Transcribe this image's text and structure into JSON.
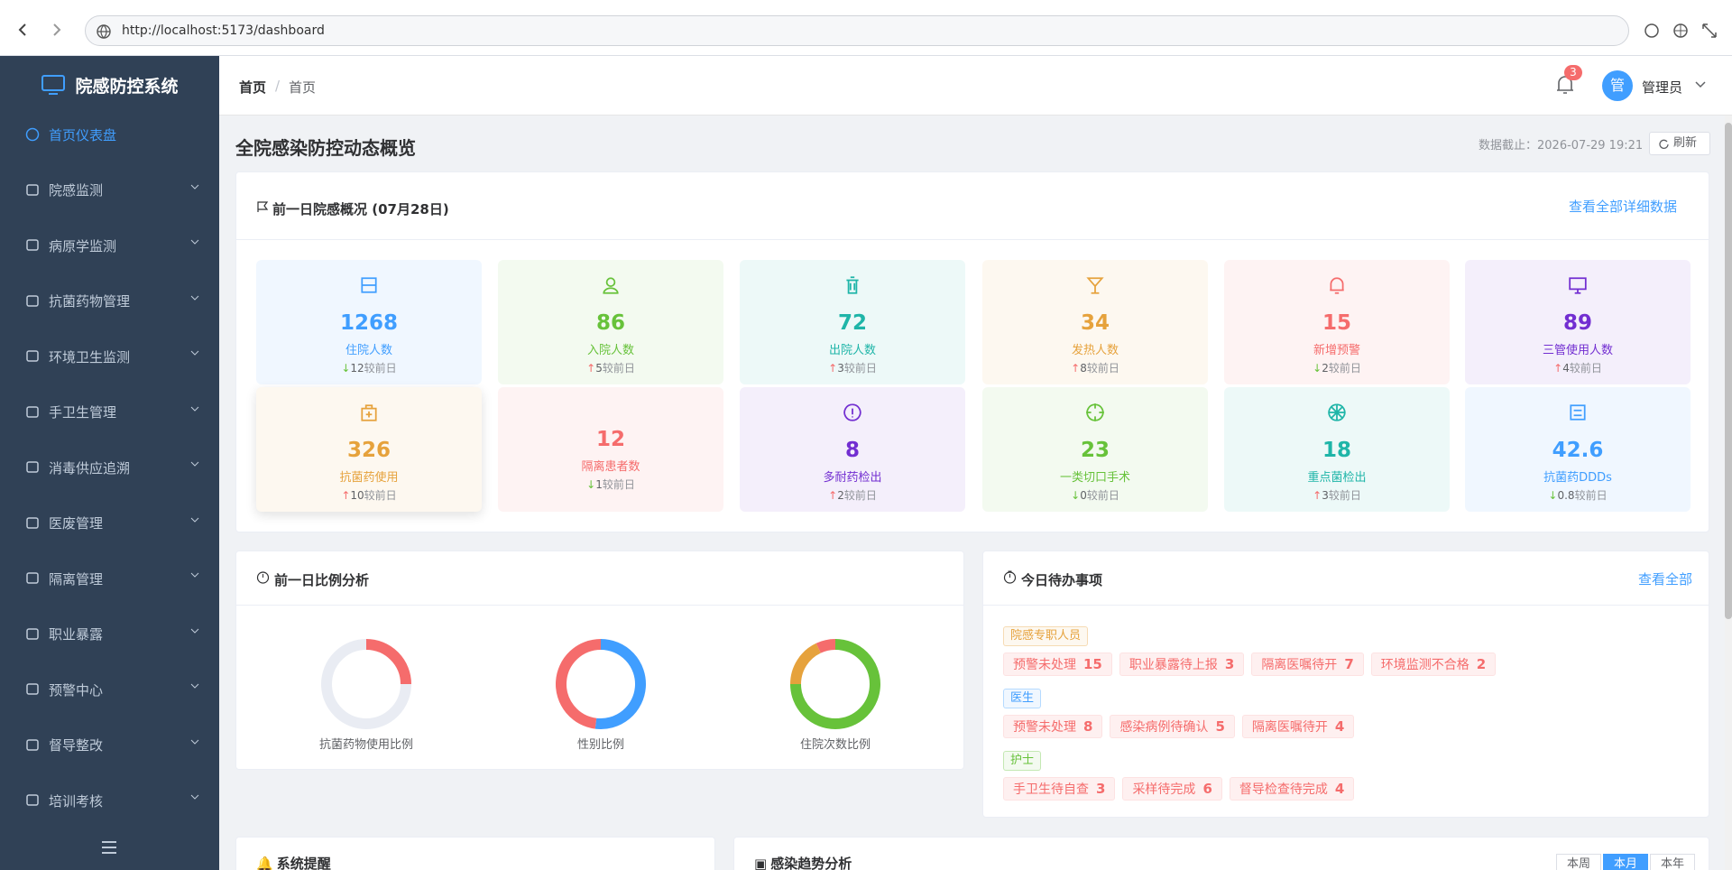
{
  "browser": {
    "url": "http://localhost:5173/dashboard"
  },
  "sidebar": {
    "title": "院感防控系统",
    "menu": [
      "首页仪表盘",
      "院感监测",
      "病原学监测",
      "抗菌药物管理",
      "环境卫生监测",
      "手卫生管理",
      "消毒供应追溯",
      "医废管理",
      "隔离管理",
      "职业暴露",
      "预警中心",
      "督导整改",
      "培训考核"
    ]
  },
  "header": {
    "breadcrumb": [
      "首页",
      "首页"
    ],
    "separator": "/",
    "notification_count": 3,
    "avatar": "管",
    "user": "管理员"
  },
  "page": {
    "title": "全院感染防控动态概览",
    "data_time": "数据截止：2026-07-29 19:21",
    "refresh": "刷新"
  },
  "overview": {
    "title": "前一日院感概况 (07月28日)",
    "link": "查看全部详细数据",
    "compare_label": "较前日",
    "stats": [
      {
        "value": 1268,
        "label": "住院人数",
        "arrow": "↓",
        "delta": 12,
        "color": "#409eff"
      },
      {
        "value": 86,
        "label": "入院人数",
        "arrow": "↑",
        "delta": 5,
        "color": "#67c23a"
      },
      {
        "value": 72,
        "label": "出院人数",
        "arrow": "↑",
        "delta": 3,
        "color": "#1fb5a8"
      },
      {
        "value": 34,
        "label": "发热人数",
        "arrow": "↑",
        "delta": 8,
        "color": "#e6a23c"
      },
      {
        "value": 15,
        "label": "新增预警",
        "arrow": "↓",
        "delta": 2,
        "color": "#f56c6c"
      },
      {
        "value": 89,
        "label": "三管使用人数",
        "arrow": "↑",
        "delta": 4,
        "color": "#722ed1"
      },
      {
        "value": 326,
        "label": "抗菌药使用",
        "arrow": "↑",
        "delta": 10,
        "color": "#e6a23c"
      },
      {
        "value": 12,
        "label": "隔离患者数",
        "arrow": "↓",
        "delta": 1,
        "color": "#f56c6c"
      },
      {
        "value": 8,
        "label": "多耐药检出",
        "arrow": "↑",
        "delta": 2,
        "color": "#722ed1"
      },
      {
        "value": 23,
        "label": "一类切口手术",
        "arrow": "↓",
        "delta": 0,
        "color": "#67c23a"
      },
      {
        "value": 18,
        "label": "重点菌检出",
        "arrow": "↑",
        "delta": 3,
        "color": "#1fb5a8"
      },
      {
        "value": 42.6,
        "label": "抗菌药DDDs",
        "arrow": "↓",
        "delta": 0.8,
        "color": "#409eff"
      }
    ]
  },
  "ratio": {
    "title": "前一日比例分析",
    "charts": [
      {
        "label": "抗菌药物使用比例",
        "values": [
          25,
          75
        ],
        "colors": [
          "#f56c6c",
          "#e9ecf3"
        ]
      },
      {
        "label": "性别比例",
        "values": [
          52,
          48
        ],
        "colors": [
          "#409eff",
          "#f56c6c"
        ]
      },
      {
        "label": "住院次数比例",
        "values": [
          75,
          18,
          7
        ],
        "colors": [
          "#67c23a",
          "#e6a23c",
          "#f56c6c"
        ]
      }
    ]
  },
  "todo": {
    "title": "今日待办事项",
    "link": "查看全部",
    "groups": [
      {
        "role": "院感专职人员",
        "color": "#e6a23c",
        "items": [
          {
            "label": "预警未处理",
            "count": 15
          },
          {
            "label": "职业暴露待上报",
            "count": 3
          },
          {
            "label": "隔离医嘱待开",
            "count": 7
          },
          {
            "label": "环境监测不合格",
            "count": 2
          }
        ]
      },
      {
        "role": "医生",
        "color": "#409eff",
        "items": [
          {
            "label": "预警未处理",
            "count": 8
          },
          {
            "label": "感染病例待确认",
            "count": 5
          },
          {
            "label": "隔离医嘱待开",
            "count": 4
          }
        ]
      },
      {
        "role": "护士",
        "color": "#67c23a",
        "items": [
          {
            "label": "手卫生待自查",
            "count": 3
          },
          {
            "label": "采样待完成",
            "count": 6
          },
          {
            "label": "督导检查待完成",
            "count": 4
          }
        ]
      }
    ]
  },
  "reminders": {
    "title": "系统提醒"
  },
  "trend": {
    "title": "感染趋势分析",
    "ranges": [
      "本周",
      "本月",
      "本年"
    ],
    "active": 1
  }
}
